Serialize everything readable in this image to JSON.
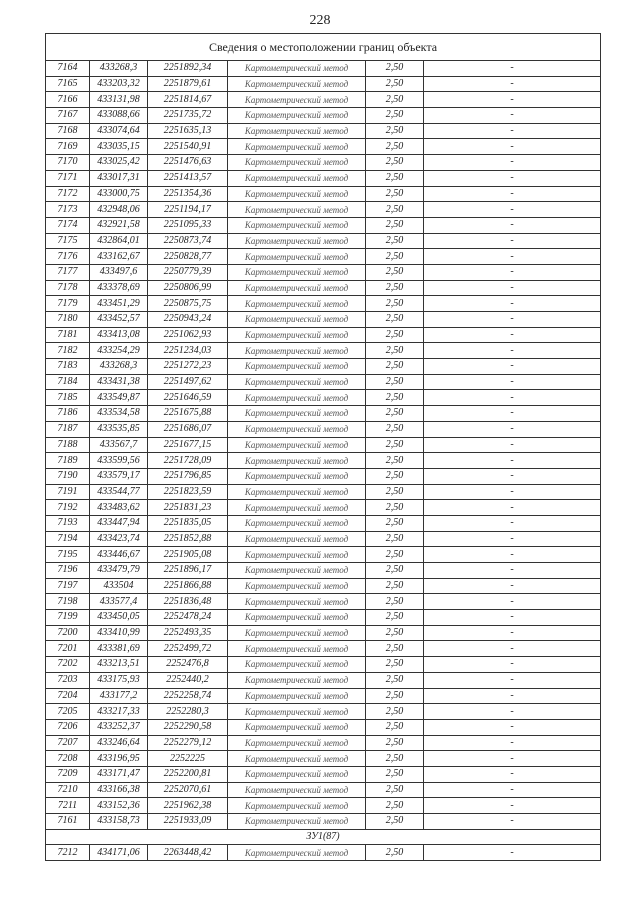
{
  "page_number": "228",
  "table_title": "Сведения о местоположении границ объекта",
  "method": "Картометрический метод",
  "rows": [
    [
      "7164",
      "433268,3",
      "2251892,34",
      "Картометрический метод",
      "2,50",
      "-"
    ],
    [
      "7165",
      "433203,32",
      "2251879,61",
      "Картометрический метод",
      "2,50",
      "-"
    ],
    [
      "7166",
      "433131,98",
      "2251814,67",
      "Картометрический метод",
      "2,50",
      "-"
    ],
    [
      "7167",
      "433088,66",
      "2251735,72",
      "Картометрический метод",
      "2,50",
      "-"
    ],
    [
      "7168",
      "433074,64",
      "2251635,13",
      "Картометрический метод",
      "2,50",
      "-"
    ],
    [
      "7169",
      "433035,15",
      "2251540,91",
      "Картометрический метод",
      "2,50",
      "-"
    ],
    [
      "7170",
      "433025,42",
      "2251476,63",
      "Картометрический метод",
      "2,50",
      "-"
    ],
    [
      "7171",
      "433017,31",
      "2251413,57",
      "Картометрический метод",
      "2,50",
      "-"
    ],
    [
      "7172",
      "433000,75",
      "2251354,36",
      "Картометрический метод",
      "2,50",
      "-"
    ],
    [
      "7173",
      "432948,06",
      "2251194,17",
      "Картометрический метод",
      "2,50",
      "-"
    ],
    [
      "7174",
      "432921,58",
      "2251095,33",
      "Картометрический метод",
      "2,50",
      "-"
    ],
    [
      "7175",
      "432864,01",
      "2250873,74",
      "Картометрический метод",
      "2,50",
      "-"
    ],
    [
      "7176",
      "433162,67",
      "2250828,77",
      "Картометрический метод",
      "2,50",
      "-"
    ],
    [
      "7177",
      "433497,6",
      "2250779,39",
      "Картометрический метод",
      "2,50",
      "-"
    ],
    [
      "7178",
      "433378,69",
      "2250806,99",
      "Картометрический метод",
      "2,50",
      "-"
    ],
    [
      "7179",
      "433451,29",
      "2250875,75",
      "Картометрический метод",
      "2,50",
      "-"
    ],
    [
      "7180",
      "433452,57",
      "2250943,24",
      "Картометрический метод",
      "2,50",
      "-"
    ],
    [
      "7181",
      "433413,08",
      "2251062,93",
      "Картометрический метод",
      "2,50",
      "-"
    ],
    [
      "7182",
      "433254,29",
      "2251234,03",
      "Картометрический метод",
      "2,50",
      "-"
    ],
    [
      "7183",
      "433268,3",
      "2251272,23",
      "Картометрический метод",
      "2,50",
      "-"
    ],
    [
      "7184",
      "433431,38",
      "2251497,62",
      "Картометрический метод",
      "2,50",
      "-"
    ],
    [
      "7185",
      "433549,87",
      "2251646,59",
      "Картометрический метод",
      "2,50",
      "-"
    ],
    [
      "7186",
      "433534,58",
      "2251675,88",
      "Картометрический метод",
      "2,50",
      "-"
    ],
    [
      "7187",
      "433535,85",
      "2251686,07",
      "Картометрический метод",
      "2,50",
      "-"
    ],
    [
      "7188",
      "433567,7",
      "2251677,15",
      "Картометрический метод",
      "2,50",
      "-"
    ],
    [
      "7189",
      "433599,56",
      "2251728,09",
      "Картометрический метод",
      "2,50",
      "-"
    ],
    [
      "7190",
      "433579,17",
      "2251796,85",
      "Картометрический метод",
      "2,50",
      "-"
    ],
    [
      "7191",
      "433544,77",
      "2251823,59",
      "Картометрический метод",
      "2,50",
      "-"
    ],
    [
      "7192",
      "433483,62",
      "2251831,23",
      "Картометрический метод",
      "2,50",
      "-"
    ],
    [
      "7193",
      "433447,94",
      "2251835,05",
      "Картометрический метод",
      "2,50",
      "-"
    ],
    [
      "7194",
      "433423,74",
      "2251852,88",
      "Картометрический метод",
      "2,50",
      "-"
    ],
    [
      "7195",
      "433446,67",
      "2251905,08",
      "Картометрический метод",
      "2,50",
      "-"
    ],
    [
      "7196",
      "433479,79",
      "2251896,17",
      "Картометрический метод",
      "2,50",
      "-"
    ],
    [
      "7197",
      "433504",
      "2251866,88",
      "Картометрический метод",
      "2,50",
      "-"
    ],
    [
      "7198",
      "433577,4",
      "2251836,48",
      "Картометрический метод",
      "2,50",
      "-"
    ],
    [
      "7199",
      "433450,05",
      "2252478,24",
      "Картометрический метод",
      "2,50",
      "-"
    ],
    [
      "7200",
      "433410,99",
      "2252493,35",
      "Картометрический метод",
      "2,50",
      "-"
    ],
    [
      "7201",
      "433381,69",
      "2252499,72",
      "Картометрический метод",
      "2,50",
      "-"
    ],
    [
      "7202",
      "433213,51",
      "2252476,8",
      "Картометрический метод",
      "2,50",
      "-"
    ],
    [
      "7203",
      "433175,93",
      "2252440,2",
      "Картометрический метод",
      "2,50",
      "-"
    ],
    [
      "7204",
      "433177,2",
      "2252258,74",
      "Картометрический метод",
      "2,50",
      "-"
    ],
    [
      "7205",
      "433217,33",
      "2252280,3",
      "Картометрический метод",
      "2,50",
      "-"
    ],
    [
      "7206",
      "433252,37",
      "2252290,58",
      "Картометрический метод",
      "2,50",
      "-"
    ],
    [
      "7207",
      "433246,64",
      "2252279,12",
      "Картометрический метод",
      "2,50",
      "-"
    ],
    [
      "7208",
      "433196,95",
      "2252225",
      "Картометрический метод",
      "2,50",
      "-"
    ],
    [
      "7209",
      "433171,47",
      "2252200,81",
      "Картометрический метод",
      "2,50",
      "-"
    ],
    [
      "7210",
      "433166,38",
      "2252070,61",
      "Картометрический метод",
      "2,50",
      "-"
    ],
    [
      "7211",
      "433152,36",
      "2251962,38",
      "Картометрический метод",
      "2,50",
      "-"
    ],
    [
      "7161",
      "433158,73",
      "2251933,09",
      "Картометрический метод",
      "2,50",
      "-"
    ]
  ],
  "section_label": "ЗУ1(87)",
  "section_rows": [
    [
      "7212",
      "434171,06",
      "2263448,42",
      "Картометрический метод",
      "2,50",
      "-"
    ]
  ]
}
